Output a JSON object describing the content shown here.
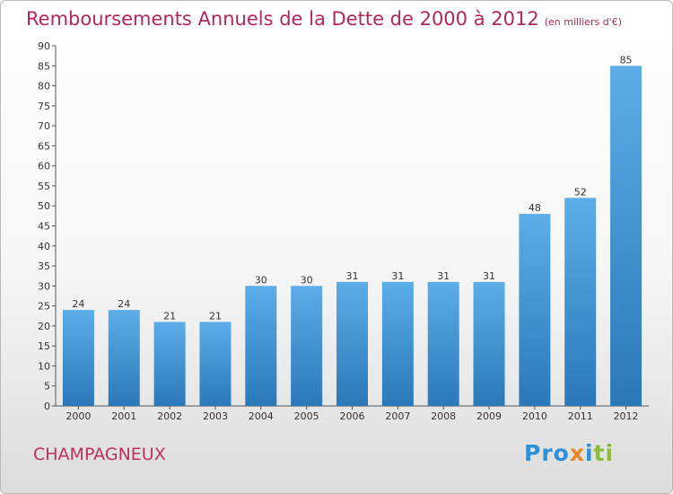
{
  "title": "Remboursements Annuels de la Dette de 2000 à 2012",
  "unit_note": "(en milliers d'€)",
  "commune": "CHAMPAGNEUX",
  "logo": {
    "part1": "Pro",
    "part2": "x",
    "part3": "i",
    "part4": "ti"
  },
  "colors": {
    "bar_top": "#5dade9",
    "bar_bottom": "#2a78b8",
    "title": "#b0285a"
  },
  "chart_data": {
    "type": "bar",
    "title": "Remboursements Annuels de la Dette de 2000 à 2012",
    "xlabel": "",
    "ylabel": "",
    "categories": [
      "2000",
      "2001",
      "2002",
      "2003",
      "2004",
      "2005",
      "2006",
      "2007",
      "2008",
      "2009",
      "2010",
      "2011",
      "2012"
    ],
    "values": [
      24,
      24,
      21,
      21,
      30,
      30,
      31,
      31,
      31,
      31,
      48,
      52,
      85
    ],
    "ylim": [
      0,
      90
    ],
    "yticks": [
      0,
      5,
      10,
      15,
      20,
      25,
      30,
      35,
      40,
      45,
      50,
      55,
      60,
      65,
      70,
      75,
      80,
      85,
      90
    ],
    "grid": false,
    "data_labels": true
  }
}
